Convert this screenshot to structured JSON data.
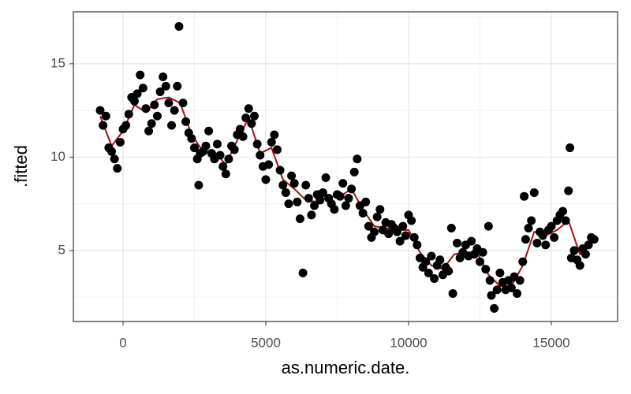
{
  "chart_data": {
    "type": "scatter",
    "x_label": "as.numeric.date.",
    "y_label": ".fitted",
    "xlim": [
      -1740,
      17320
    ],
    "ylim": [
      1.2,
      17.78
    ],
    "xticks": [
      0,
      5000,
      10000,
      15000
    ],
    "yticks": [
      5,
      10,
      15
    ],
    "xminor": [
      2500,
      7500,
      12500
    ],
    "yminor": [
      2.5,
      7.5,
      12.5,
      17.5
    ],
    "grid": true,
    "series": [
      {
        "mode": "line",
        "color": "#a50f15",
        "x": [
          -800,
          -400,
          0,
          400,
          800,
          1200,
          1600,
          2000,
          2400,
          2800,
          3200,
          3600,
          4000,
          4400,
          4800,
          5200,
          5600,
          6000,
          6400,
          6800,
          7200,
          7600,
          8000,
          8400,
          8800,
          9200,
          9600,
          10000,
          10400,
          10800,
          11200,
          11600,
          12000,
          12400,
          12800,
          13200,
          13600,
          14000,
          14400,
          14800,
          15200,
          15600,
          16000,
          16400
        ],
        "y": [
          12.2,
          10.6,
          11.4,
          12.8,
          12.4,
          13.1,
          13.2,
          12.9,
          11.2,
          10.3,
          10.3,
          9.6,
          10.9,
          12.1,
          10.2,
          10.5,
          8.8,
          8.3,
          7.7,
          7.6,
          7.9,
          7.9,
          8.3,
          7.2,
          6.3,
          6.2,
          6.1,
          6.1,
          4.9,
          4.2,
          4.0,
          4.8,
          4.9,
          4.9,
          3.7,
          3.1,
          3.1,
          4.2,
          6.0,
          5.8,
          6.1,
          6.6,
          4.8,
          5.3
        ]
      },
      {
        "mode": "markers",
        "color": "#000000",
        "x": [
          -800,
          -700,
          -600,
          -500,
          -400,
          -300,
          -200,
          -100,
          0,
          100,
          200,
          300,
          400,
          500,
          600,
          700,
          800,
          900,
          1000,
          1100,
          1200,
          1300,
          1400,
          1500,
          1600,
          1700,
          1800,
          1900,
          1960,
          2100,
          2200,
          2300,
          2400,
          2500,
          2600,
          2650,
          2700,
          2800,
          2900,
          3000,
          3100,
          3200,
          3300,
          3400,
          3500,
          3600,
          3700,
          3800,
          3900,
          4000,
          4100,
          4200,
          4300,
          4400,
          4500,
          4600,
          4700,
          4800,
          4900,
          5000,
          5100,
          5200,
          5300,
          5400,
          5500,
          5600,
          5700,
          5800,
          5900,
          6000,
          6100,
          6200,
          6300,
          6400,
          6500,
          6600,
          6700,
          6800,
          6900,
          7000,
          7100,
          7200,
          7300,
          7400,
          7500,
          7600,
          7700,
          7800,
          7900,
          8000,
          8100,
          8200,
          8300,
          8400,
          8500,
          8600,
          8700,
          8800,
          8900,
          9000,
          9100,
          9200,
          9300,
          9400,
          9500,
          9600,
          9700,
          9800,
          9900,
          10000,
          10100,
          10200,
          10300,
          10400,
          10500,
          10600,
          10700,
          10800,
          10900,
          11000,
          11100,
          11200,
          11300,
          11400,
          11500,
          11550,
          11700,
          11800,
          11900,
          12000,
          12100,
          12200,
          12300,
          12400,
          12500,
          12600,
          12700,
          12800,
          12850,
          12900,
          13000,
          13100,
          13200,
          13300,
          13400,
          13500,
          13600,
          13700,
          13800,
          13900,
          14000,
          14050,
          14100,
          14200,
          14300,
          14400,
          14500,
          14600,
          14700,
          14800,
          14900,
          15000,
          15100,
          15200,
          15300,
          15400,
          15500,
          15600,
          15650,
          15700,
          15800,
          15900,
          16000,
          16100,
          16200,
          16300,
          16400,
          16500
        ],
        "y": [
          12.5,
          11.7,
          12.2,
          10.5,
          10.3,
          9.9,
          9.4,
          10.8,
          11.5,
          11.7,
          12.3,
          13.2,
          13,
          13.4,
          14.4,
          13.7,
          12.6,
          11.4,
          11.8,
          12.8,
          12.2,
          13.5,
          14.3,
          13.8,
          12.9,
          11.7,
          12.5,
          13.8,
          17,
          12.9,
          11.9,
          11.3,
          11,
          10.5,
          9.9,
          8.5,
          10.2,
          10.3,
          10.6,
          11.4,
          10.2,
          9.9,
          10.7,
          10.1,
          9.5,
          9.1,
          9.9,
          10.6,
          10.4,
          11.2,
          11.5,
          11.1,
          12.1,
          12.6,
          11.8,
          12.2,
          10.7,
          10.1,
          9.5,
          8.8,
          9.6,
          10.8,
          11.2,
          10.4,
          9.3,
          8.5,
          8.1,
          7.5,
          9,
          8.6,
          7.6,
          6.7,
          3.8,
          8.5,
          7.8,
          6.9,
          7.4,
          8,
          7.7,
          8.1,
          8.9,
          7.8,
          7.5,
          7.2,
          8,
          7.9,
          8.6,
          7.4,
          7.8,
          8.3,
          9.2,
          9.9,
          7.4,
          7,
          7.6,
          6.3,
          5.7,
          6,
          6.8,
          7.2,
          6.1,
          6.5,
          5.9,
          6.4,
          6.2,
          6,
          5.5,
          6.3,
          5.8,
          6.9,
          6.6,
          5.7,
          5.3,
          4.6,
          4.1,
          4.4,
          3.8,
          4.7,
          3.5,
          4.2,
          4.5,
          3.7,
          4.1,
          3.9,
          6.2,
          2.7,
          5.4,
          4.6,
          4.9,
          5.3,
          4.7,
          5.5,
          4.8,
          5.1,
          4.4,
          4.9,
          4,
          6.3,
          3.4,
          2.6,
          1.9,
          2.9,
          3.8,
          3.3,
          2.9,
          3.4,
          3,
          3.6,
          2.7,
          3.4,
          4.4,
          7.9,
          5.6,
          6.2,
          6.6,
          8.1,
          5.4,
          6,
          5.8,
          5.3,
          6.1,
          6.3,
          5.7,
          6.6,
          6.9,
          7.1,
          6.6,
          8.2,
          10.5,
          4.6,
          5,
          4.5,
          4.2,
          5.1,
          4.8,
          5.3,
          5.7,
          5.6
        ]
      }
    ]
  }
}
